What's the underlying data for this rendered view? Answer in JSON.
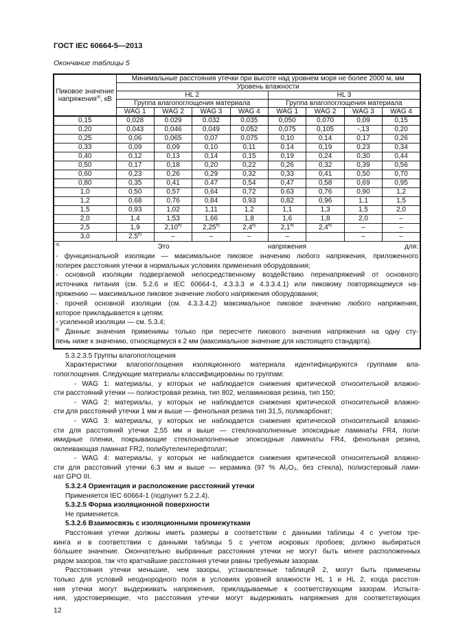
{
  "header": {
    "doc_code": "ГОСТ IEC 60664-5—2013"
  },
  "caption": "Окончание таблицы 5",
  "table": {
    "row_header": "Пиковое значение напряжения",
    "row_header_sup": "a)",
    "row_header_unit": ", кВ",
    "title": "Минимальные расстояния утечки при высоте над уровнем моря не более 2000 м, мм",
    "humidity_label": "Уровень влажности",
    "levels": [
      "HL 2",
      "HL 3"
    ],
    "group_label": "Группа влагопоглощения материала",
    "wag": [
      "WAG 1",
      "WAG 2",
      "WAG 3",
      "WAG 4",
      "WAG 1",
      "WAG 2",
      "WAG 3",
      "WAG 4"
    ],
    "rows": [
      [
        "0,15",
        "0,028",
        "0.029",
        "0.032",
        "0,035",
        "0,050",
        "0,070",
        "0,09",
        "0,15"
      ],
      [
        "0,20",
        "0,043",
        "0,046",
        "0,049",
        "0,052",
        "0,075",
        "0,105",
        "-,13",
        "0,20"
      ],
      [
        "0,25",
        "0,06",
        "0,065",
        "0,07",
        "0,075",
        "0,10",
        "0,14",
        "0,17",
        "0,26"
      ],
      [
        "0,33",
        "0,09",
        "0,09",
        "0,10",
        "0,11",
        "0.14",
        "0,19",
        "0,23",
        "0,34"
      ],
      [
        "0,40",
        "0,12",
        "0,13",
        "0,14",
        "0,15",
        "0,19",
        "0,24",
        "0,30",
        "0,44"
      ],
      [
        "0,50",
        "0,17",
        "0,18",
        "0,20",
        "0,22",
        "0,26",
        "0,32",
        "0,39",
        "0,56"
      ],
      [
        "0,60",
        "0,23",
        "0,26",
        "0,29",
        "0,32",
        "0,33",
        "0,41",
        "0,50",
        "0,70"
      ],
      [
        "0,80",
        "0,35",
        "0,41",
        "0.47",
        "0,54",
        "0,47",
        "0,58",
        "0,69",
        "0,95"
      ],
      [
        "1,0",
        "0,50",
        "0,57",
        "0,64",
        "0,72",
        "0.63",
        "0,76",
        "0,90",
        "1,2"
      ],
      [
        "1,2",
        "0,68",
        "0,76",
        "0,84",
        "0,93",
        "0,82",
        "0,96",
        "1,1",
        "1,5"
      ],
      [
        "1,5",
        "0,93",
        "1,02",
        "1,11",
        "1,2",
        "1,1",
        "1,3",
        "1,5",
        "2,0"
      ],
      [
        "2,0",
        "1,4",
        "1,53",
        "1,66",
        "1,8",
        "1,6",
        "1,8",
        "2,0",
        "–"
      ],
      [
        "2,5",
        "1,9",
        "2,10^b)",
        "2,25^b)",
        "2,4^b)",
        "2,1^b)",
        "2,4^b)",
        "–",
        "–"
      ],
      [
        "3,0",
        "2,5^b)",
        "–",
        "–",
        "–",
        "–",
        "",
        "–",
        "–"
      ]
    ],
    "footnotes": [
      {
        "sup": "a)",
        "text": " Это напряжения для:"
      },
      {
        "text": "- функциональной изоляции — максимальное пиковое значению любого напряжения, приложенного"
      },
      {
        "text": "поперек расстояния утечки в нормальных условиях применения оборудования;",
        "last": true
      },
      {
        "text": "- основной изоляции подвергаемой непосредственному воздействию перенапряжений от основного"
      },
      {
        "text": "источника питания (см. 5.2.6 и IEC 60664-1, 4.3.3.3 и 4.3.3.4.1) или пиковому повторяющемуся на-"
      },
      {
        "text": "пряжению — максимальное пиковое значение любого напряжения оборудования;",
        "last": true
      },
      {
        "text": "- прочей основной изоляции (см. 4.3.3.4.2)  максимальное пиковое значению любого напряжения,"
      },
      {
        "text": "которое прикладывается к цепям;",
        "last": true
      },
      {
        "text": "- усиленной изоляции — см. 5.3.4;",
        "last": true
      },
      {
        "sup": "b)",
        "text": " Данные значения применимы только при пересчете пикового значения напряжения на одну сту-"
      },
      {
        "text": "пень ниже к значению, относящемуся к 2 мм (максимальное значение для настоящего стандарта).",
        "last": true
      }
    ]
  },
  "body": [
    {
      "t": "5.3.2.3.5 Группы влагопоглощения",
      "c": "i1"
    },
    {
      "t": "Характеристики влагопоглощения изоляционного материала идентифицируются группами вла-",
      "c": "i1 j"
    },
    {
      "t": "гопоглощения. Следующие материалы классифицированы по группам:",
      "c": ""
    },
    {
      "t": "- WAG 1: материалы, у которых не наблюдается снижения критической относительной влажно-",
      "c": "i2 j"
    },
    {
      "t": "сти расстояний утечки — полиэстровая резина, тип 802, меламиновая резина, тип 150;",
      "c": ""
    },
    {
      "t": "- WAG 2: материалы, у которых не наблюдается снижения критической относительной влажно-",
      "c": "i2 j"
    },
    {
      "t": "сти для расстояний утечки 1 мм и выше — фенольная резина тип 31,5, поликарбонат;",
      "c": ""
    },
    {
      "t": "- WAG 3: материалы, у которых не наблюдается снижения критической относительной влажно-",
      "c": "i2 j"
    },
    {
      "t": "сти для расстояний утечки 2,55 мм и выше — стеклонаполненные эпоксидные ламинаты FR4, поли-",
      "c": "j"
    },
    {
      "t": "имидные пленки, покрывающие стеклонаполненные эпоксидные ламинаты FR4, фенольная резина,",
      "c": "j"
    },
    {
      "t": "оклеивающая ламинат FR2, полибутелентерефтолат;",
      "c": ""
    },
    {
      "t": "- WAG 4: материалы, у которых не наблюдается снижения критической относительной влажно-",
      "c": "i2 j"
    },
    {
      "t": "сти для расстояний утечки 6,3 мм и выше — керамика (97 % Al₂O₃, без стекла), полиэстеровый лами-",
      "c": "j"
    },
    {
      "t": "нат GPO III.",
      "c": ""
    },
    {
      "t": "5.3.2.4 Ориентация и расположение расстояний утечки",
      "c": "i1 b"
    },
    {
      "t": "Применяется IEC 60664-1 (подпункт 5.2.2.4).",
      "c": "i1"
    },
    {
      "t": "5.3.2.5 Форма изоляционной поверхности",
      "c": "i1 b"
    },
    {
      "t": "Не применяется.",
      "c": "i1"
    },
    {
      "t": "5.3.2.6 Взаимосвязь с изоляционными промежутками",
      "c": "i1 b"
    },
    {
      "t": "Расстояния утечки должны иметь размеры в соответствии с данными таблицы 4 с учетом тре-",
      "c": "i1 j"
    },
    {
      "t": "кинга и в соответствии с данными таблицы 5 с учетом искровых пробоев; должно выбираться",
      "c": "j"
    },
    {
      "t": "бóльшее значение. Окончательно выбранные расстояния утечки не могут быть менее расположенных",
      "c": "j"
    },
    {
      "t": "рядом зазоров, так что кратчайшие расстояния утечки равны требуемым зазорам.",
      "c": ""
    },
    {
      "t": "Расстояния утечки меньшие, чем зазоры, установленные таблицей 2, могут быть применены",
      "c": "i1 j"
    },
    {
      "t": "только для условий неоднородного поля в условиях уровней влажности  HL 1 и HL 2, когда расстоя-",
      "c": "j"
    },
    {
      "t": "ния утечки могут выдерживать напряжения, прикладываемые к соответствующим зазорам. Испыта-",
      "c": "j"
    },
    {
      "t": "ния, удостоверяющие, что расстояния утечки могут выдерживать напряжения для соответствующих",
      "c": "j"
    }
  ],
  "page_number": "12"
}
